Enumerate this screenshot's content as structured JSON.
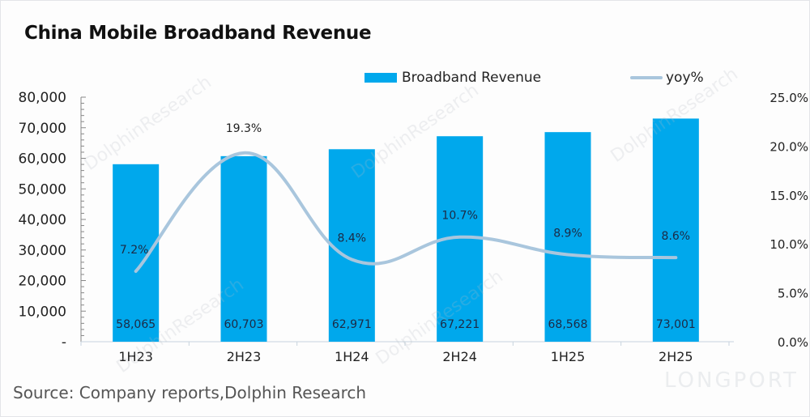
{
  "chart_data": {
    "type": "bar+line",
    "title": "China Mobile Broadband Revenue",
    "source": "Source: Company reports,Dolphin Research",
    "categories": [
      "1H23",
      "2H23",
      "1H24",
      "2H24",
      "1H25",
      "2H25"
    ],
    "series": [
      {
        "name": "Broadband Revenue",
        "type": "bar",
        "axis": "left",
        "color": "#00a8ec",
        "values": [
          58065,
          60703,
          62971,
          67221,
          68568,
          73001
        ],
        "labels": [
          "58,065",
          "60,703",
          "62,971",
          "67,221",
          "68,568",
          "73,001"
        ]
      },
      {
        "name": "yoy%",
        "type": "line",
        "axis": "right",
        "color": "#a9c6dd",
        "smooth": true,
        "values": [
          7.2,
          19.3,
          8.4,
          10.7,
          8.9,
          8.6
        ],
        "labels": [
          "7.2%",
          "19.3%",
          "8.4%",
          "10.7%",
          "8.9%",
          "8.6%"
        ]
      }
    ],
    "y_left": {
      "range": [
        0,
        80000
      ],
      "ticks": [
        0,
        10000,
        20000,
        30000,
        40000,
        50000,
        60000,
        70000,
        80000
      ],
      "tick_labels": [
        "-",
        "10,000",
        "20,000",
        "30,000",
        "40,000",
        "50,000",
        "60,000",
        "70,000",
        "80,000"
      ]
    },
    "y_right": {
      "range": [
        0,
        25
      ],
      "ticks": [
        0,
        5,
        10,
        15,
        20,
        25
      ],
      "tick_labels": [
        "0.0%",
        "5.0%",
        "10.0%",
        "15.0%",
        "20.0%",
        "25.0%"
      ]
    },
    "legend": {
      "position": "top",
      "entries": [
        "Broadband Revenue",
        "yoy%"
      ]
    },
    "grid": false
  },
  "watermark": {
    "text": "DolphinResearch",
    "brand": "LONGPORT"
  }
}
